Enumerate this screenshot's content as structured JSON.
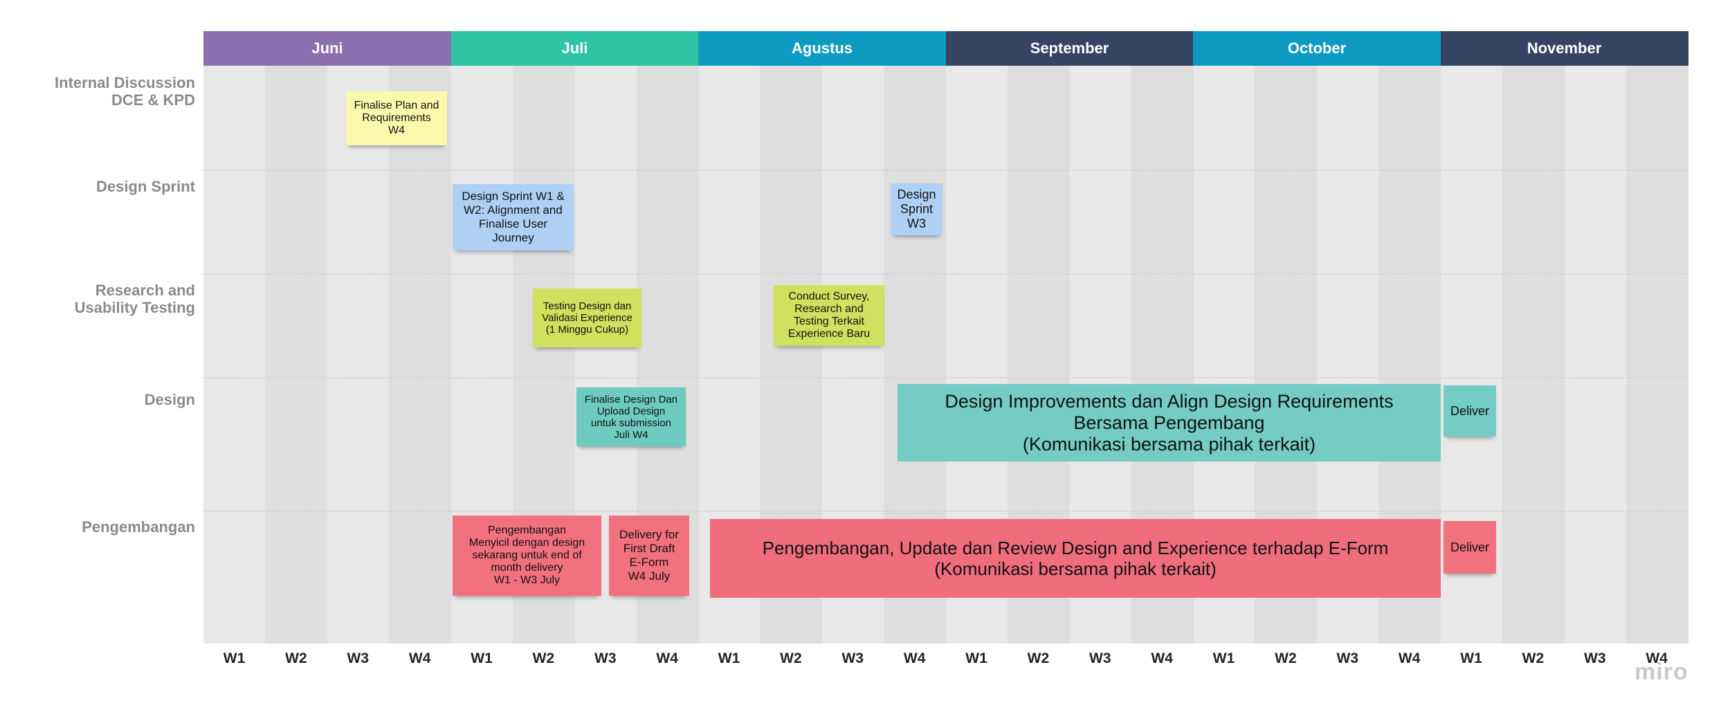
{
  "months": [
    {
      "label": "Juni",
      "color": "#8b6faf"
    },
    {
      "label": "Juli",
      "color": "#2ec4a4"
    },
    {
      "label": "Agustus",
      "color": "#0d9bc1"
    },
    {
      "label": "September",
      "color": "#364464"
    },
    {
      "label": "October",
      "color": "#0d9bc1"
    },
    {
      "label": "November",
      "color": "#364464"
    }
  ],
  "weeks": [
    "W1",
    "W2",
    "W3",
    "W4",
    "W1",
    "W2",
    "W3",
    "W4",
    "W1",
    "W2",
    "W3",
    "W4",
    "W1",
    "W2",
    "W3",
    "W4",
    "W1",
    "W2",
    "W3",
    "W4",
    "W1",
    "W2",
    "W3",
    "W4"
  ],
  "rows": [
    {
      "label": "Internal Discussion\nDCE & KPD"
    },
    {
      "label": "Design Sprint"
    },
    {
      "label": "Research and\nUsability Testing"
    },
    {
      "label": "Design"
    },
    {
      "label": "Pengembangan"
    }
  ],
  "notes": [
    {
      "text": "Finalise Plan and\nRequirements\nW4",
      "color": "#fdf8ac"
    },
    {
      "text": "Design Sprint W1 &\nW2: Alignment and\nFinalise User\nJourney",
      "color": "#aed0f5"
    },
    {
      "text": "Design\nSprint\nW3",
      "color": "#aed0f5"
    },
    {
      "text": "Testing Design dan\nValidasi Experience\n(1 Minggu Cukup)",
      "color": "#cfe15e"
    },
    {
      "text": "Conduct Survey,\nResearch and\nTesting Terkait\nExperience Baru",
      "color": "#cfe15e"
    },
    {
      "text": "Finalise Design Dan\nUpload Design\nuntuk submission\nJuli W4",
      "color": "#6dcbc2"
    },
    {
      "text": "Design Improvements dan Align Design Requirements\nBersama Pengembang\n(Komunikasi bersama pihak terkait)",
      "color": "#74ccc4"
    },
    {
      "text": "Deliver",
      "color": "#74ccc4"
    },
    {
      "text": "Pengembangan\nMenyicil dengan design\nsekarang untuk end of\nmonth delivery\nW1 - W3 July",
      "color": "#f2717f"
    },
    {
      "text": "Delivery for\nFirst Draft\nE-Form\nW4 July",
      "color": "#f2717f"
    },
    {
      "text": "Pengembangan, Update dan Review Design and Experience terhadap E-Form\n(Komunikasi bersama pihak terkait)",
      "color": "#f06d7e"
    },
    {
      "text": "Deliver",
      "color": "#f2717f"
    }
  ],
  "brand": "miro"
}
